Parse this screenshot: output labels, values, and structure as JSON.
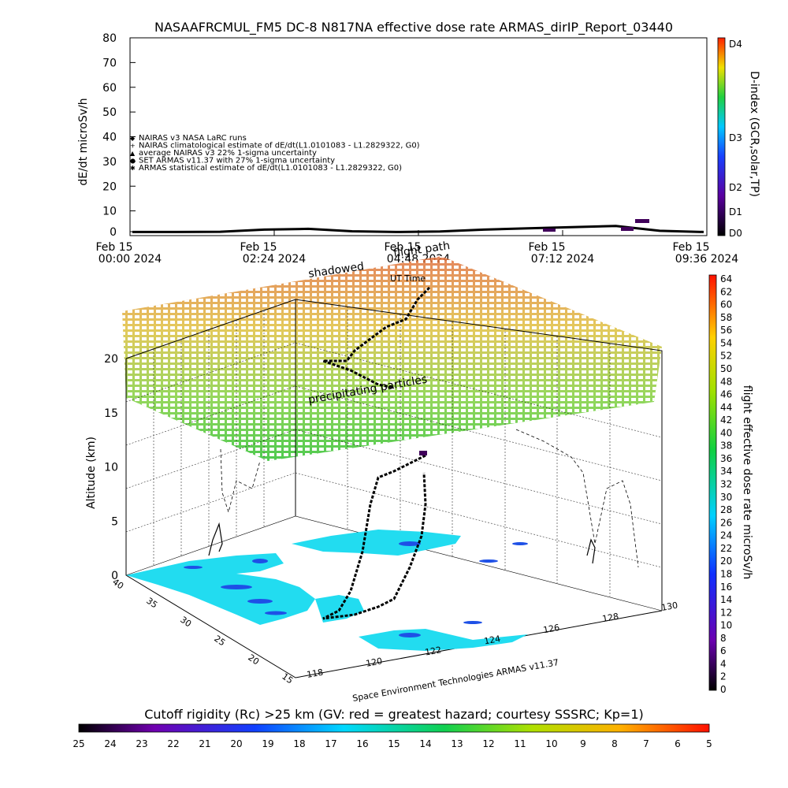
{
  "title": "NASAAFRCMUL_FM5 DC-8   N817NA effective dose rate ARMAS_dirIP_Report_03440",
  "top_chart": {
    "ylabel": "dE/dt microSv/h",
    "yticks": [
      "0",
      "10",
      "20",
      "30",
      "40",
      "50",
      "60",
      "70",
      "80"
    ],
    "ylim": [
      0,
      80
    ],
    "xticks": [
      {
        "l1": "Feb 15",
        "l2": "00:00 2024"
      },
      {
        "l1": "Feb 15",
        "l2": "02:24 2024"
      },
      {
        "l1": "Feb 15",
        "l2": "04:48 2024"
      },
      {
        "l1": "Feb 15",
        "l2": "07:12 2024"
      },
      {
        "l1": "Feb 15",
        "l2": "09:36 2024"
      }
    ],
    "legend": [
      "NAIRAS v3 NASA LaRC runs",
      "NAIRAS climatological estimate of dE/dt(L1.0101083 - L1.2829322, G0)",
      "average NAIRAS v3 22% 1-sigma uncertainty",
      "SET ARMAS v11.37 with 27% 1-sigma uncertainty",
      "ARMAS statistical estimate of dE/dt(L1.0101083 - L1.2829322, G0)"
    ],
    "right_axis_label": "D-index (GCR,solar,TP)",
    "right_ticks": [
      "D0",
      "D1",
      "D2",
      "D3",
      "D4"
    ]
  },
  "chart_data": {
    "type": "line",
    "title": "NASAAFRCMUL_FM5 DC-8   N817NA effective dose rate ARMAS_dirIP_Report_03440",
    "ylabel": "dE/dt microSv/h",
    "ylim": [
      0,
      80
    ],
    "x": [
      "00:00",
      "01:00",
      "02:00",
      "02:30",
      "03:00",
      "04:00",
      "05:00",
      "06:00",
      "07:00",
      "07:30",
      "08:00",
      "08:30",
      "09:00",
      "09:36"
    ],
    "series": [
      {
        "name": "ARMAS statistical estimate of dE/dt(L1.0101083 - L1.2829322, G0)",
        "values": [
          0.5,
          0.5,
          0.6,
          1.5,
          1.8,
          0.8,
          0.5,
          0.7,
          1.5,
          2.0,
          2.5,
          3.0,
          1.0,
          0.5
        ]
      }
    ]
  },
  "overlay": {
    "shadowed": "shadowed",
    "flight_path": "flight path",
    "ut_time": "UT Time",
    "precipitating": "precipitating particles"
  },
  "map3d": {
    "zlabel": "Altitude (km)",
    "zticks": [
      "0",
      "5",
      "10",
      "15",
      "20"
    ],
    "lat_ticks": [
      "40",
      "35",
      "30",
      "25",
      "20",
      "15"
    ],
    "lon_ticks": [
      "118",
      "120",
      "122",
      "124",
      "126",
      "128",
      "130"
    ],
    "credit": "Space Environment Technologies ARMAS v11.37"
  },
  "right_colorbar": {
    "label": "flight effective dose rate microSv/h",
    "ticks": [
      "0",
      "2",
      "4",
      "6",
      "8",
      "10",
      "12",
      "14",
      "16",
      "18",
      "20",
      "22",
      "24",
      "26",
      "28",
      "30",
      "32",
      "34",
      "36",
      "38",
      "40",
      "42",
      "44",
      "46",
      "48",
      "50",
      "52",
      "54",
      "56",
      "58",
      "60",
      "62",
      "64"
    ]
  },
  "bottom_colorbar": {
    "title": "Cutoff rigidity (Rc) >25 km (GV: red = greatest hazard; courtesy SSSRC; Kp=1)",
    "ticks": [
      "25",
      "24",
      "23",
      "22",
      "21",
      "20",
      "19",
      "18",
      "17",
      "16",
      "15",
      "14",
      "13",
      "12",
      "11",
      "10",
      "9",
      "8",
      "7",
      "6",
      "5"
    ]
  },
  "colors": {
    "cyan_land": "#22dcf0",
    "blue_patch": "#1e50e6",
    "track": "#000000"
  }
}
